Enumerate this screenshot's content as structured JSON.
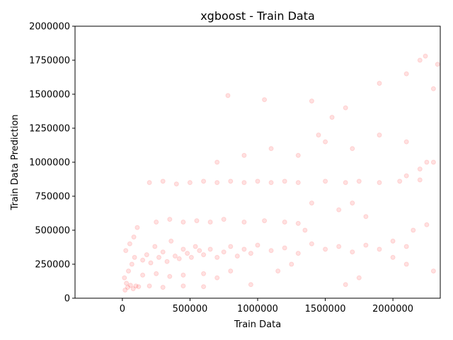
{
  "chart_data": {
    "type": "scatter",
    "title": "xgboost - Train Data",
    "xlabel": "Train Data",
    "ylabel": "Train Data Prediction",
    "xlim": [
      -350000,
      2350000
    ],
    "ylim": [
      0,
      2000000
    ],
    "xticks": [
      0,
      500000,
      1000000,
      1500000,
      2000000
    ],
    "xtick_labels": [
      "0",
      "500000",
      "1000000",
      "1500000",
      "2000000"
    ],
    "yticks": [
      0,
      250000,
      500000,
      750000,
      1000000,
      1250000,
      1500000,
      1750000,
      2000000
    ],
    "ytick_labels": [
      "0",
      "250000",
      "500000",
      "750000",
      "1000000",
      "1250000",
      "1500000",
      "1750000",
      "2000000"
    ],
    "grid": false,
    "marker_color": "#ff0000",
    "marker_alpha": 0.12,
    "series": [
      {
        "points": [
          [
            20000,
            60000
          ],
          [
            40000,
            80000
          ],
          [
            60000,
            95000
          ],
          [
            30000,
            110000
          ],
          [
            80000,
            70000
          ],
          [
            100000,
            90000
          ],
          [
            120000,
            85000
          ],
          [
            15000,
            150000
          ],
          [
            45000,
            200000
          ],
          [
            70000,
            250000
          ],
          [
            90000,
            300000
          ],
          [
            25000,
            350000
          ],
          [
            55000,
            400000
          ],
          [
            85000,
            450000
          ],
          [
            110000,
            520000
          ],
          [
            150000,
            280000
          ],
          [
            180000,
            320000
          ],
          [
            210000,
            260000
          ],
          [
            240000,
            380000
          ],
          [
            270000,
            300000
          ],
          [
            300000,
            340000
          ],
          [
            330000,
            270000
          ],
          [
            360000,
            420000
          ],
          [
            390000,
            310000
          ],
          [
            420000,
            290000
          ],
          [
            450000,
            360000
          ],
          [
            480000,
            330000
          ],
          [
            510000,
            300000
          ],
          [
            540000,
            380000
          ],
          [
            570000,
            350000
          ],
          [
            600000,
            320000
          ],
          [
            650000,
            360000
          ],
          [
            700000,
            300000
          ],
          [
            750000,
            340000
          ],
          [
            800000,
            380000
          ],
          [
            850000,
            310000
          ],
          [
            900000,
            360000
          ],
          [
            950000,
            330000
          ],
          [
            1000000,
            390000
          ],
          [
            1100000,
            350000
          ],
          [
            1200000,
            370000
          ],
          [
            1300000,
            330000
          ],
          [
            1400000,
            400000
          ],
          [
            1500000,
            360000
          ],
          [
            1600000,
            380000
          ],
          [
            1700000,
            340000
          ],
          [
            1800000,
            390000
          ],
          [
            1900000,
            360000
          ],
          [
            2000000,
            420000
          ],
          [
            2100000,
            380000
          ],
          [
            250000,
            560000
          ],
          [
            350000,
            580000
          ],
          [
            450000,
            560000
          ],
          [
            550000,
            570000
          ],
          [
            650000,
            560000
          ],
          [
            750000,
            580000
          ],
          [
            900000,
            560000
          ],
          [
            1050000,
            570000
          ],
          [
            1200000,
            560000
          ],
          [
            1300000,
            550000
          ],
          [
            200000,
            850000
          ],
          [
            300000,
            860000
          ],
          [
            400000,
            840000
          ],
          [
            500000,
            850000
          ],
          [
            600000,
            860000
          ],
          [
            700000,
            850000
          ],
          [
            800000,
            860000
          ],
          [
            900000,
            850000
          ],
          [
            1000000,
            860000
          ],
          [
            1100000,
            850000
          ],
          [
            1200000,
            860000
          ],
          [
            1300000,
            850000
          ],
          [
            1500000,
            860000
          ],
          [
            1650000,
            850000
          ],
          [
            1750000,
            860000
          ],
          [
            1900000,
            850000
          ],
          [
            2050000,
            860000
          ],
          [
            2200000,
            870000
          ],
          [
            150000,
            170000
          ],
          [
            250000,
            180000
          ],
          [
            350000,
            160000
          ],
          [
            450000,
            170000
          ],
          [
            600000,
            180000
          ],
          [
            200000,
            90000
          ],
          [
            300000,
            80000
          ],
          [
            450000,
            90000
          ],
          [
            600000,
            85000
          ],
          [
            700000,
            1000000
          ],
          [
            900000,
            1050000
          ],
          [
            1100000,
            1100000
          ],
          [
            1300000,
            1050000
          ],
          [
            1500000,
            1150000
          ],
          [
            1700000,
            1100000
          ],
          [
            1900000,
            1200000
          ],
          [
            2100000,
            1150000
          ],
          [
            2250000,
            1000000
          ],
          [
            1400000,
            1450000
          ],
          [
            1650000,
            1400000
          ],
          [
            1900000,
            1580000
          ],
          [
            2100000,
            1650000
          ],
          [
            2200000,
            1750000
          ],
          [
            2240000,
            1780000
          ],
          [
            2330000,
            1720000
          ],
          [
            2300000,
            1540000
          ],
          [
            780000,
            1490000
          ],
          [
            1050000,
            1460000
          ],
          [
            1550000,
            1330000
          ],
          [
            1450000,
            1200000
          ],
          [
            2100000,
            900000
          ],
          [
            2200000,
            950000
          ],
          [
            2300000,
            1000000
          ],
          [
            2150000,
            500000
          ],
          [
            2250000,
            540000
          ],
          [
            2000000,
            300000
          ],
          [
            2100000,
            250000
          ],
          [
            2300000,
            200000
          ],
          [
            1650000,
            100000
          ],
          [
            1750000,
            150000
          ],
          [
            1800000,
            600000
          ],
          [
            1700000,
            700000
          ],
          [
            1600000,
            650000
          ],
          [
            1400000,
            700000
          ],
          [
            1350000,
            500000
          ],
          [
            950000,
            100000
          ],
          [
            1250000,
            250000
          ],
          [
            1150000,
            200000
          ],
          [
            800000,
            200000
          ],
          [
            700000,
            150000
          ]
        ]
      }
    ]
  }
}
